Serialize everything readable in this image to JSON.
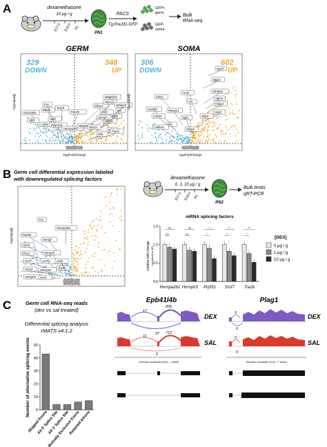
{
  "panels": {
    "a": {
      "letter": "A",
      "treatment": "dexamethasone",
      "dose": "10 μg / g",
      "days": [
        "E17.5",
        "E18.5",
        "P0"
      ],
      "pn_label": "PN1",
      "facs": "FACS",
      "strain": "Tg;Pou5f1-GFP",
      "gfp_pos": "GFP+",
      "gfp_pos_sub": "germ",
      "gfp_neg": "GFP-",
      "gfp_neg_sub": "soma",
      "bulk": "Bulk",
      "rnaseq": "RNA-seq"
    },
    "germ_volcano": {
      "title": "GERM",
      "down_count": "329",
      "down_label": "DOWN",
      "up_count": "348",
      "up_label": "UP",
      "xlabel": "log2FoldChange",
      "ylabel": "-log10(padj)",
      "labels": [
        "Mageb16",
        "Tex15",
        "Nlrp14",
        "Crlf2",
        "Gm11466",
        "Btbd3",
        "Tnfrsf5",
        "Hells",
        "Cdh3",
        "Dcun1d1",
        "Hnrnpa2b1",
        "Nkapl2",
        "Sbf2",
        "Fus",
        "Rbm14",
        "Mlh1",
        "Adcy6",
        "Hnrnpf",
        "Khl8",
        "Ddx21",
        "Prps2",
        "Kif2",
        "Mtr",
        "Nckipsd"
      ]
    },
    "soma_volcano": {
      "title": "SOMA",
      "down_count": "306",
      "down_label": "DOWN",
      "up_count": "602",
      "up_label": "UP",
      "xlabel": "log2FoldChange",
      "ylabel": "-log10(padj)",
      "labels": [
        "Gpx3",
        "Sgpp1",
        "Acsl3",
        "Ctla4",
        "Kit",
        "Slc38a2",
        "Agmo",
        "Fabp4",
        "Hsd3b1",
        "Pecam1",
        "Nrg2",
        "Cd163",
        "Sgk1",
        "Sfrp4",
        "Nfl3",
        "Cdkn1c",
        "Fkbp5"
      ]
    },
    "b": {
      "letter": "B",
      "heading_line1": "Germ cell differential expression labeled",
      "heading_line2": "with downregulated splicing factors",
      "treatment": "dexamethasone",
      "doses": "0, 1, 10 μg / g",
      "days": [
        "E17.5",
        "E18.5",
        "P0"
      ],
      "pn_label": "PN2",
      "bulk": "Bulk testis",
      "assay": "qRT-PCR",
      "volcano_labels": [
        "Fus",
        "Pnpla8",
        "Hnrnpa2b1",
        "Cdc5l",
        "Hnrnpf",
        "Khsrp",
        "Hnrnpdl",
        "Srsf7",
        "Luc7l3",
        "Tra2b",
        "Srp14",
        "Snrnp40",
        "Hnrnph3",
        "Srsf1",
        "Celf1"
      ]
    },
    "c": {
      "letter": "C",
      "heading_line1": "Germ cell RNA-seq reads",
      "heading_line2": "(dex vs sal treated)",
      "subheading_line1": "Differential splicing analysis",
      "subheading_line2": "rMATS v4.1.2",
      "gene1": "Epb41l4b",
      "gene2": "Plag1",
      "dex": "DEX",
      "sal": "SAL",
      "junction_dex": [
        "17",
        "835"
      ],
      "junction_dex_skip": "37",
      "junction_sal": [
        "11",
        "712"
      ],
      "junction_sal_skip": "2",
      "plag1_dex": [
        "5",
        "6"
      ],
      "plag1_sal": [
        "5",
        "0"
      ],
      "coord_label": "Genomic coordinate (chr4), '-' strand",
      "coord_label2": "Genomic coordinate (chr4), '+' strand"
    }
  },
  "chart_data": [
    {
      "type": "bar",
      "title": "mRNA splicing factors",
      "ylabel": "relative fold change",
      "ylabel_sub": "normalized to 18S",
      "categories": [
        "Hnrnpa2b1",
        "Hnrnph3",
        "Prpf31",
        "Srsf7",
        "Tra2b"
      ],
      "ylim": [
        0,
        1.5
      ],
      "yticks": [
        "0.0",
        "0.5",
        "1.0",
        "1.5"
      ],
      "legend_title": "[DEX]",
      "series": [
        {
          "name": "0 μg / g",
          "values": [
            1.0,
            1.0,
            1.0,
            1.0,
            1.0
          ],
          "color": "#e8e8e8"
        },
        {
          "name": "1 μg / g",
          "values": [
            0.93,
            0.85,
            0.9,
            0.82,
            0.76
          ],
          "color": "#8a8a8a"
        },
        {
          "name": "10 μg / g",
          "values": [
            0.88,
            0.82,
            0.62,
            0.7,
            0.52
          ],
          "color": "#2b2b2b"
        }
      ],
      "significance": [
        [
          "ns",
          "ns"
        ],
        [
          "ns",
          "ns"
        ],
        [
          "*",
          "*"
        ],
        [
          "*",
          "**"
        ],
        [
          "*",
          "**"
        ]
      ]
    },
    {
      "type": "bar",
      "ylabel": "Number of alternative splicing events",
      "categories": [
        "Skipped Exons",
        "Alt 5' Splice Site",
        "Alt 3' Splice Site",
        "Mutually Exclusive Exons",
        "Retained Introns"
      ],
      "values": [
        43,
        4,
        4,
        6,
        7
      ],
      "ylim": [
        0,
        50
      ],
      "yticks": [
        "0",
        "10",
        "20",
        "30",
        "40",
        "50"
      ]
    }
  ]
}
